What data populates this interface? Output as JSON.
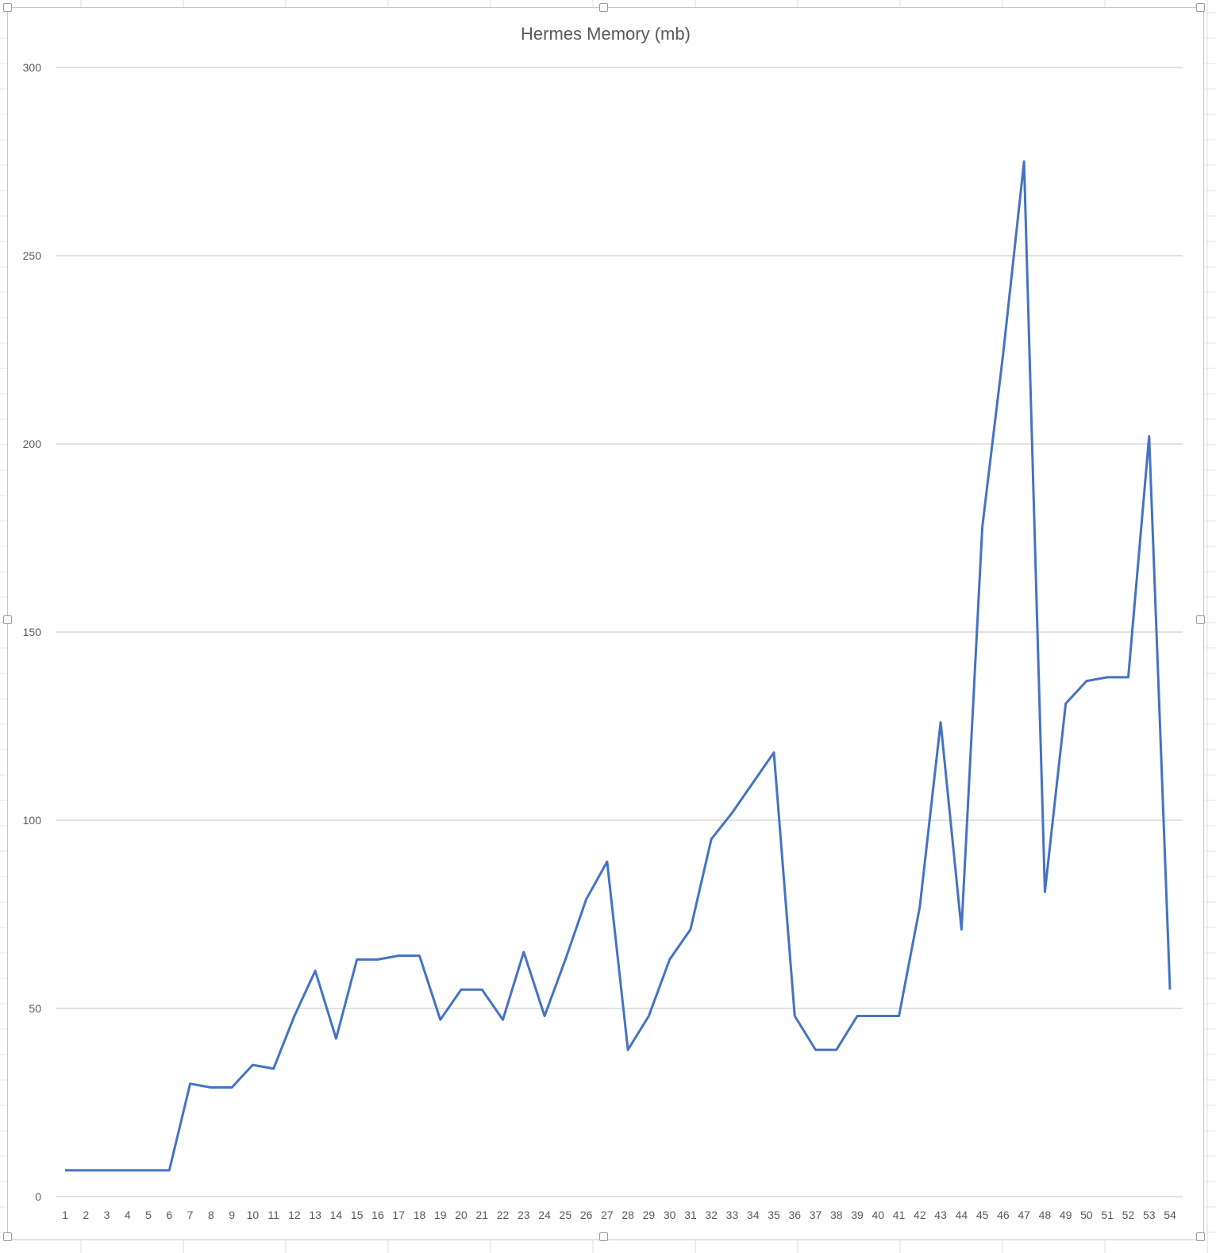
{
  "chart_data": {
    "type": "line",
    "title": "Hermes Memory (mb)",
    "xlabel": "",
    "ylabel": "",
    "ylim": [
      0,
      300
    ],
    "yticks": [
      0,
      50,
      100,
      150,
      200,
      250,
      300
    ],
    "grid": "horizontal",
    "legend": "none",
    "line_color": "#4472C4",
    "x": [
      1,
      2,
      3,
      4,
      5,
      6,
      7,
      8,
      9,
      10,
      11,
      12,
      13,
      14,
      15,
      16,
      17,
      18,
      19,
      20,
      21,
      22,
      23,
      24,
      25,
      26,
      27,
      28,
      29,
      30,
      31,
      32,
      33,
      34,
      35,
      36,
      37,
      38,
      39,
      40,
      41,
      42,
      43,
      44,
      45,
      46,
      47,
      48,
      49,
      50,
      51,
      52,
      53,
      54
    ],
    "series": [
      {
        "values": [
          7,
          7,
          7,
          7,
          7,
          7,
          30,
          29,
          29,
          35,
          34,
          48,
          60,
          42,
          63,
          63,
          64,
          64,
          47,
          55,
          55,
          47,
          65,
          48,
          63,
          79,
          89,
          39,
          48,
          63,
          71,
          95,
          102,
          110,
          118,
          48,
          39,
          39,
          48,
          48,
          48,
          77,
          126,
          71,
          178,
          224,
          275,
          81,
          131,
          137,
          138,
          138,
          202,
          55
        ]
      }
    ]
  }
}
